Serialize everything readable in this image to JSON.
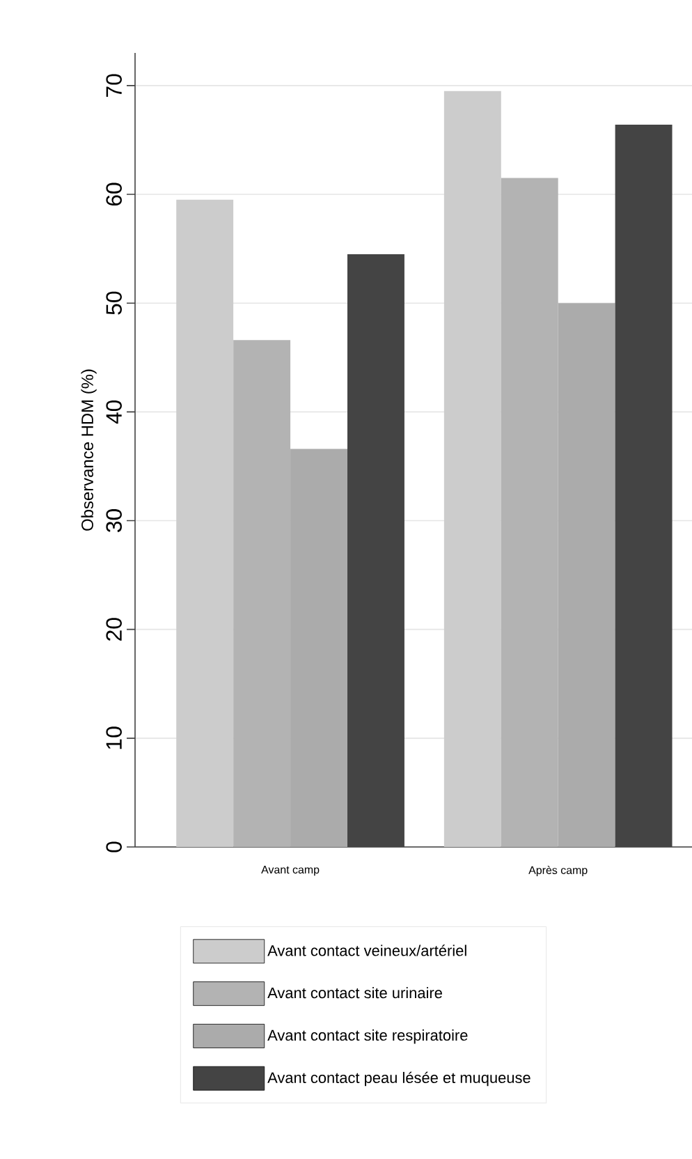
{
  "chart_data": {
    "type": "bar",
    "ylabel": "Observance HDM (%)",
    "categories": [
      "Avant camp",
      "Après camp"
    ],
    "series": [
      {
        "name": "Avant contact veineux/artériel",
        "color": "#cccccc",
        "values": [
          59.5,
          69.5
        ]
      },
      {
        "name": "Avant contact site urinaire",
        "color": "#b3b3b3",
        "values": [
          46.6,
          61.5
        ]
      },
      {
        "name": "Avant contact site respiratoire",
        "color": "#ababab",
        "values": [
          36.6,
          50.0
        ]
      },
      {
        "name": "Avant contact peau lésée et muqueuse",
        "color": "#444444",
        "values": [
          54.5,
          66.4
        ]
      }
    ],
    "ylim": [
      0,
      73
    ],
    "yticks": [
      0,
      10,
      20,
      30,
      40,
      50,
      60,
      70
    ],
    "grid": "y",
    "legend": "bottom"
  }
}
